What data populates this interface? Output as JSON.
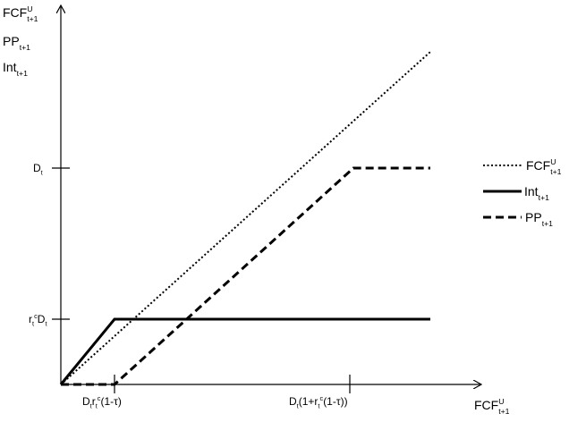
{
  "y_axis": {
    "label_lines": [
      {
        "base": "FCF",
        "sup": "U",
        "sub": "t+1"
      },
      {
        "base": "PP",
        "sub": "t+1"
      },
      {
        "base": "Int",
        "sub": "t+1"
      }
    ],
    "ticks": [
      {
        "parts": [
          {
            "t": "D"
          },
          {
            "t": "t",
            "s": "sub"
          }
        ]
      },
      {
        "parts": [
          {
            "t": "r"
          },
          {
            "t": "t",
            "s": "sub"
          },
          {
            "t": "c",
            "s": "sup"
          },
          {
            "t": "D"
          },
          {
            "t": "t",
            "s": "sub"
          }
        ]
      }
    ]
  },
  "x_axis": {
    "label": {
      "base": "FCF",
      "sup": "U",
      "sub": "t+1"
    },
    "ticks": [
      {
        "parts": [
          {
            "t": "D"
          },
          {
            "t": "t",
            "s": "sub"
          },
          {
            "t": "r"
          },
          {
            "t": "t",
            "s": "sub"
          },
          {
            "t": "c",
            "s": "sup"
          },
          {
            "t": "(1-τ)"
          }
        ]
      },
      {
        "parts": [
          {
            "t": "D"
          },
          {
            "t": "t",
            "s": "sub"
          },
          {
            "t": "(1+r"
          },
          {
            "t": "t",
            "s": "sub"
          },
          {
            "t": "c",
            "s": "sup"
          },
          {
            "t": "(1-τ))"
          }
        ]
      }
    ]
  },
  "legend": [
    {
      "base": "FCF",
      "sup": "U",
      "sub": "t+1",
      "style": "dotted"
    },
    {
      "base": "Int",
      "sub": "t+1",
      "style": "solid"
    },
    {
      "base": "PP",
      "sub": "t+1",
      "style": "dashed"
    }
  ]
}
